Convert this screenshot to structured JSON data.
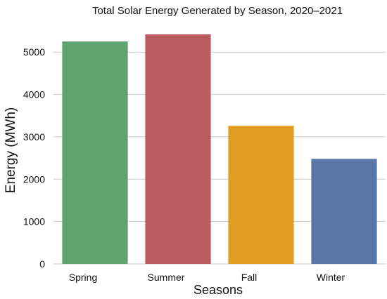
{
  "chart_data": {
    "type": "bar",
    "title": "Total Solar Energy Generated by Season, 2020–2021",
    "xlabel": "Seasons",
    "ylabel": "Energy (MWh)",
    "categories": [
      "Spring",
      "Summer",
      "Fall",
      "Winter"
    ],
    "values": [
      5250,
      5420,
      3260,
      2480
    ],
    "colors": [
      "#5fa36e",
      "#b85c5f",
      "#e09f22",
      "#5b76a8"
    ],
    "ylim": [
      0,
      5600
    ],
    "yticks": [
      0,
      1000,
      2000,
      3000,
      4000,
      5000
    ],
    "ytick_labels": [
      "0",
      "1000",
      "2000",
      "3000",
      "4000",
      "5000"
    ],
    "grid": true,
    "legend": "none"
  }
}
